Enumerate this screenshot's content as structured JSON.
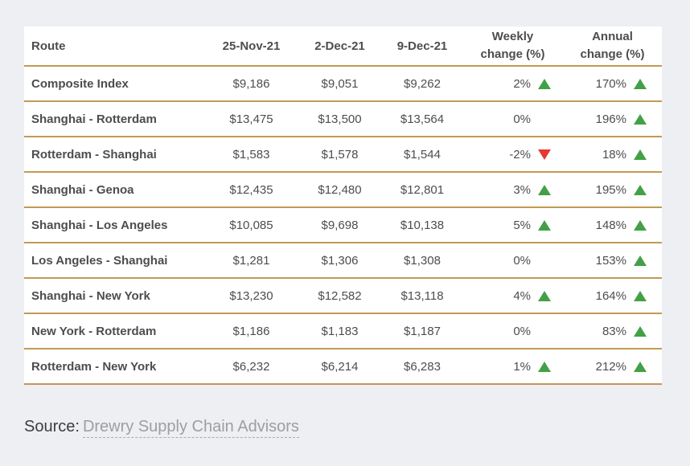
{
  "colors": {
    "page_background": "#edeff3",
    "card_background": "#ffffff",
    "divider_gold": "#c29a52",
    "text_gray": "#4d4d4d",
    "up_arrow_green": "#43a047",
    "down_arrow_red": "#e53935",
    "source_link_gray": "#9e9e9e"
  },
  "table": {
    "columns": [
      "Route",
      "25-Nov-21",
      "2-Dec-21",
      "9-Dec-21",
      "Weekly change (%)",
      "Annual change (%)"
    ],
    "rows": [
      {
        "route": "Composite Index",
        "nov25": "$9,186",
        "dec2": "$9,051",
        "dec9": "$9,262",
        "weekly": "2%",
        "weekly_dir": "up",
        "annual": "170%",
        "annual_dir": "up"
      },
      {
        "route": "Shanghai - Rotterdam",
        "nov25": "$13,475",
        "dec2": "$13,500",
        "dec9": "$13,564",
        "weekly": "0%",
        "annual": "196%",
        "annual_dir": "up"
      },
      {
        "route": "Rotterdam - Shanghai",
        "nov25": "$1,583",
        "dec2": "$1,578",
        "dec9": "$1,544",
        "weekly": "-2%",
        "weekly_dir": "down",
        "annual": "18%",
        "annual_dir": "up"
      },
      {
        "route": "Shanghai - Genoa",
        "nov25": "$12,435",
        "dec2": "$12,480",
        "dec9": "$12,801",
        "weekly": "3%",
        "weekly_dir": "up",
        "annual": "195%",
        "annual_dir": "up"
      },
      {
        "route": "Shanghai - Los Angeles",
        "nov25": "$10,085",
        "dec2": "$9,698",
        "dec9": "$10,138",
        "weekly": "5%",
        "weekly_dir": "up",
        "annual": "148%",
        "annual_dir": "up"
      },
      {
        "route": "Los Angeles - Shanghai",
        "nov25": "$1,281",
        "dec2": "$1,306",
        "dec9": "$1,308",
        "weekly": "0%",
        "annual": "153%",
        "annual_dir": "up"
      },
      {
        "route": "Shanghai - New York",
        "nov25": "$13,230",
        "dec2": "$12,582",
        "dec9": "$13,118",
        "weekly": "4%",
        "weekly_dir": "up",
        "annual": "164%",
        "annual_dir": "up"
      },
      {
        "route": "New York - Rotterdam",
        "nov25": "$1,186",
        "dec2": "$1,183",
        "dec9": "$1,187",
        "weekly": "0%",
        "annual": "83%",
        "annual_dir": "up"
      },
      {
        "route": "Rotterdam - New York",
        "nov25": "$6,232",
        "dec2": "$6,214",
        "dec9": "$6,283",
        "weekly": "1%",
        "weekly_dir": "up",
        "annual": "212%",
        "annual_dir": "up"
      }
    ]
  },
  "source": {
    "label": "Source:",
    "link": "Drewry Supply Chain Advisors"
  },
  "chart_data": {
    "type": "table",
    "columns": [
      "Route",
      "25-Nov-21",
      "2-Dec-21",
      "9-Dec-21",
      "Weekly change (%)",
      "Annual change (%)"
    ],
    "rows": [
      {
        "route": "Composite Index",
        "values_usd": [
          9186,
          9051,
          9262
        ],
        "weekly_change_pct": 2,
        "annual_change_pct": 170
      },
      {
        "route": "Shanghai - Rotterdam",
        "values_usd": [
          13475,
          13500,
          13564
        ],
        "weekly_change_pct": 0,
        "annual_change_pct": 196
      },
      {
        "route": "Rotterdam - Shanghai",
        "values_usd": [
          1583,
          1578,
          1544
        ],
        "weekly_change_pct": -2,
        "annual_change_pct": 18
      },
      {
        "route": "Shanghai - Genoa",
        "values_usd": [
          12435,
          12480,
          12801
        ],
        "weekly_change_pct": 3,
        "annual_change_pct": 195
      },
      {
        "route": "Shanghai - Los Angeles",
        "values_usd": [
          10085,
          9698,
          10138
        ],
        "weekly_change_pct": 5,
        "annual_change_pct": 148
      },
      {
        "route": "Los Angeles - Shanghai",
        "values_usd": [
          1281,
          1306,
          1308
        ],
        "weekly_change_pct": 0,
        "annual_change_pct": 153
      },
      {
        "route": "Shanghai - New York",
        "values_usd": [
          13230,
          12582,
          13118
        ],
        "weekly_change_pct": 4,
        "annual_change_pct": 164
      },
      {
        "route": "New York - Rotterdam",
        "values_usd": [
          1186,
          1183,
          1187
        ],
        "weekly_change_pct": 0,
        "annual_change_pct": 83
      },
      {
        "route": "Rotterdam - New York",
        "values_usd": [
          6232,
          6214,
          6283
        ],
        "weekly_change_pct": 1,
        "annual_change_pct": 212
      }
    ],
    "source": "Drewry Supply Chain Advisors"
  }
}
